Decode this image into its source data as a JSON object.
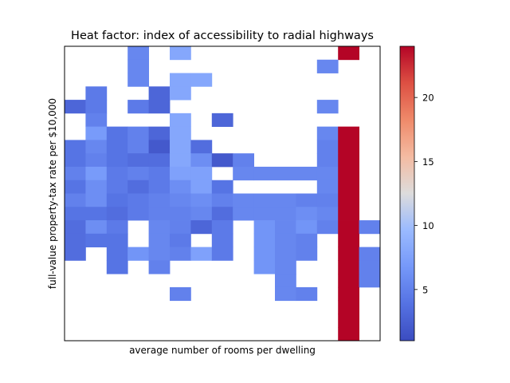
{
  "chart_data": {
    "type": "heatmap",
    "title": "Heat factor: index of accessibility to radial highways",
    "xlabel": "average number of rooms per dwelling",
    "ylabel": "full-value property-tax rate per $10,000",
    "x_ticks_shown": false,
    "y_ticks_shown": false,
    "grid": false,
    "n_cols": 15,
    "n_rows": 22,
    "colormap": "coolwarm",
    "vmin": 1,
    "vmax": 24,
    "colorbar_ticks": [
      5,
      10,
      15,
      20
    ],
    "colorbar_position": "right",
    "cells": [
      [
        3,
        0,
        5.5
      ],
      [
        5,
        0,
        8
      ],
      [
        13,
        0,
        24
      ],
      [
        3,
        1,
        5.5
      ],
      [
        12,
        1,
        5.5
      ],
      [
        3,
        2,
        5.5
      ],
      [
        5,
        2,
        8
      ],
      [
        6,
        2,
        8
      ],
      [
        1,
        3,
        4.5
      ],
      [
        4,
        3,
        3
      ],
      [
        5,
        3,
        8
      ],
      [
        0,
        4,
        3
      ],
      [
        1,
        4,
        4.5
      ],
      [
        3,
        4,
        4.5
      ],
      [
        4,
        4,
        3
      ],
      [
        12,
        4,
        5.5
      ],
      [
        1,
        5,
        5
      ],
      [
        5,
        5,
        8
      ],
      [
        7,
        5,
        3
      ],
      [
        1,
        6,
        7
      ],
      [
        2,
        6,
        4
      ],
      [
        3,
        6,
        5
      ],
      [
        4,
        6,
        3
      ],
      [
        5,
        6,
        8
      ],
      [
        12,
        6,
        5.5
      ],
      [
        13,
        6,
        24
      ],
      [
        0,
        7,
        4
      ],
      [
        1,
        7,
        5.5
      ],
      [
        2,
        7,
        4
      ],
      [
        3,
        7,
        5
      ],
      [
        4,
        7,
        2
      ],
      [
        5,
        7,
        8
      ],
      [
        6,
        7,
        3.5
      ],
      [
        12,
        7,
        5
      ],
      [
        13,
        7,
        24
      ],
      [
        0,
        8,
        4
      ],
      [
        1,
        8,
        5
      ],
      [
        2,
        8,
        4
      ],
      [
        3,
        8,
        3.5
      ],
      [
        4,
        8,
        3.5
      ],
      [
        5,
        8,
        8
      ],
      [
        6,
        8,
        6
      ],
      [
        7,
        8,
        2
      ],
      [
        8,
        8,
        5
      ],
      [
        12,
        8,
        5
      ],
      [
        13,
        8,
        24
      ],
      [
        0,
        9,
        5
      ],
      [
        1,
        9,
        7
      ],
      [
        2,
        9,
        4.5
      ],
      [
        3,
        9,
        5
      ],
      [
        4,
        9,
        4.5
      ],
      [
        5,
        9,
        7.5
      ],
      [
        6,
        9,
        7.5
      ],
      [
        8,
        9,
        5.5
      ],
      [
        9,
        9,
        5.5
      ],
      [
        10,
        9,
        5.5
      ],
      [
        11,
        9,
        5.5
      ],
      [
        12,
        9,
        5.5
      ],
      [
        13,
        9,
        24
      ],
      [
        0,
        10,
        4
      ],
      [
        1,
        10,
        6
      ],
      [
        2,
        10,
        4.5
      ],
      [
        3,
        10,
        3.5
      ],
      [
        4,
        10,
        4.5
      ],
      [
        5,
        10,
        6
      ],
      [
        6,
        10,
        7.5
      ],
      [
        7,
        10,
        4
      ],
      [
        12,
        10,
        5.5
      ],
      [
        13,
        10,
        24
      ],
      [
        0,
        11,
        5
      ],
      [
        1,
        11,
        6
      ],
      [
        2,
        11,
        4
      ],
      [
        3,
        11,
        4.5
      ],
      [
        4,
        11,
        5
      ],
      [
        5,
        11,
        5.5
      ],
      [
        6,
        11,
        6
      ],
      [
        7,
        11,
        5
      ],
      [
        8,
        11,
        5.5
      ],
      [
        9,
        11,
        5.5
      ],
      [
        10,
        11,
        5.5
      ],
      [
        11,
        11,
        5
      ],
      [
        12,
        11,
        5
      ],
      [
        13,
        11,
        24
      ],
      [
        0,
        12,
        4
      ],
      [
        1,
        12,
        4
      ],
      [
        2,
        12,
        3.5
      ],
      [
        3,
        12,
        4.5
      ],
      [
        4,
        12,
        5
      ],
      [
        5,
        12,
        5
      ],
      [
        6,
        12,
        5.5
      ],
      [
        7,
        12,
        3.5
      ],
      [
        8,
        12,
        5.5
      ],
      [
        9,
        12,
        5.5
      ],
      [
        10,
        12,
        5.5
      ],
      [
        11,
        12,
        6
      ],
      [
        12,
        12,
        5.5
      ],
      [
        13,
        12,
        24
      ],
      [
        0,
        13,
        3.5
      ],
      [
        1,
        13,
        6
      ],
      [
        2,
        13,
        4.5
      ],
      [
        4,
        13,
        5.5
      ],
      [
        5,
        13,
        5
      ],
      [
        6,
        13,
        3
      ],
      [
        7,
        13,
        4.5
      ],
      [
        9,
        13,
        6.5
      ],
      [
        10,
        13,
        5.5
      ],
      [
        11,
        13,
        6.5
      ],
      [
        12,
        13,
        5
      ],
      [
        13,
        13,
        24
      ],
      [
        14,
        13,
        5
      ],
      [
        0,
        14,
        3.5
      ],
      [
        1,
        14,
        4
      ],
      [
        2,
        14,
        4
      ],
      [
        4,
        14,
        5.5
      ],
      [
        5,
        14,
        4.5
      ],
      [
        7,
        14,
        4.5
      ],
      [
        9,
        14,
        6.5
      ],
      [
        10,
        14,
        5.5
      ],
      [
        11,
        14,
        5
      ],
      [
        13,
        14,
        24
      ],
      [
        0,
        15,
        3.5
      ],
      [
        2,
        15,
        4
      ],
      [
        3,
        15,
        6.5
      ],
      [
        4,
        15,
        5.5
      ],
      [
        5,
        15,
        5
      ],
      [
        6,
        15,
        7.5
      ],
      [
        7,
        15,
        4.5
      ],
      [
        9,
        15,
        6.5
      ],
      [
        10,
        15,
        5.5
      ],
      [
        11,
        15,
        5
      ],
      [
        13,
        15,
        24
      ],
      [
        14,
        15,
        5
      ],
      [
        2,
        16,
        4
      ],
      [
        4,
        16,
        5
      ],
      [
        9,
        16,
        6.5
      ],
      [
        10,
        16,
        5.5
      ],
      [
        13,
        16,
        24
      ],
      [
        14,
        16,
        5
      ],
      [
        10,
        17,
        5.5
      ],
      [
        13,
        17,
        24
      ],
      [
        14,
        17,
        5
      ],
      [
        5,
        18,
        5
      ],
      [
        10,
        18,
        5.5
      ],
      [
        11,
        18,
        5
      ],
      [
        13,
        18,
        24
      ],
      [
        13,
        19,
        24
      ],
      [
        13,
        20,
        24
      ],
      [
        13,
        21,
        24
      ]
    ]
  }
}
